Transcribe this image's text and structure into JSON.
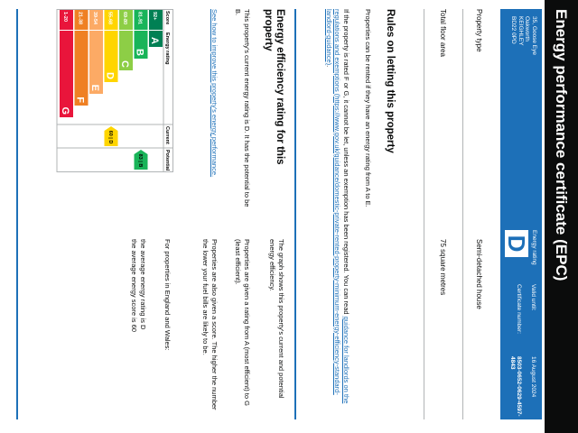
{
  "header": {
    "title": "Energy performance certificate (EPC)"
  },
  "summary": {
    "address": [
      "35, Goose Eye",
      "Oakworth",
      "KEIGHLEY",
      "BD22 0PD"
    ],
    "energy_rating_label": "Energy rating",
    "energy_rating": "D",
    "valid_until_label": "Valid until:",
    "valid_until": "16 August 2024",
    "certificate_number_label": "Certificate number:",
    "certificate_number": "8503-0652-0629-4597-4843"
  },
  "details": [
    {
      "label": "Property type",
      "value": "Semi-detached house"
    },
    {
      "label": "Total floor area",
      "value": "75 square metres"
    }
  ],
  "letting": {
    "title": "Rules on letting this property",
    "text": "Properties can be rented if they have an energy rating from A to E.",
    "paragraph_before": "If the property is rated F or G, it cannot be let, unless an exemption has been registered. You can read ",
    "link": "guidance for landlords on the regulations and exemptions (https://www.gov.uk/guidance/domestic-private-rented-property-minimum-energy-efficiency-standard-landlord-guidance)",
    "paragraph_after": "."
  },
  "efficiency": {
    "title": "Energy efficiency rating for this property",
    "text": "This property's current energy rating is D. It has the potential to be B.",
    "link": "See how to improve this property's energy performance.",
    "paragraphs": [
      "The graph shows this property's current and potential energy efficiency.",
      "Properties are given a rating from A (most efficient) to G (least efficient).",
      "Properties are also given a score. The higher the number the lower your fuel bills are likely to be."
    ],
    "averages_intro": "For properties in England and Wales:",
    "averages": [
      "the average energy rating is D",
      "the average energy score is 60"
    ]
  },
  "rating_chart": {
    "headers": {
      "score": "Score",
      "rating": "Energy rating",
      "current": "Current",
      "potential": "Potential"
    },
    "bands": [
      {
        "score": "92+",
        "letter": "A",
        "color": "#008054"
      },
      {
        "score": "81-91",
        "letter": "B",
        "color": "#19b459"
      },
      {
        "score": "69-80",
        "letter": "C",
        "color": "#8dce46"
      },
      {
        "score": "55-68",
        "letter": "D",
        "color": "#ffd500"
      },
      {
        "score": "39-54",
        "letter": "E",
        "color": "#fcaa65"
      },
      {
        "score": "21-38",
        "letter": "F",
        "color": "#ef8023"
      },
      {
        "score": "1-20",
        "letter": "G",
        "color": "#e9153b"
      }
    ],
    "current": {
      "value": 60,
      "label": "60 | D"
    },
    "potential": {
      "value": 83,
      "label": "83 | B"
    }
  }
}
